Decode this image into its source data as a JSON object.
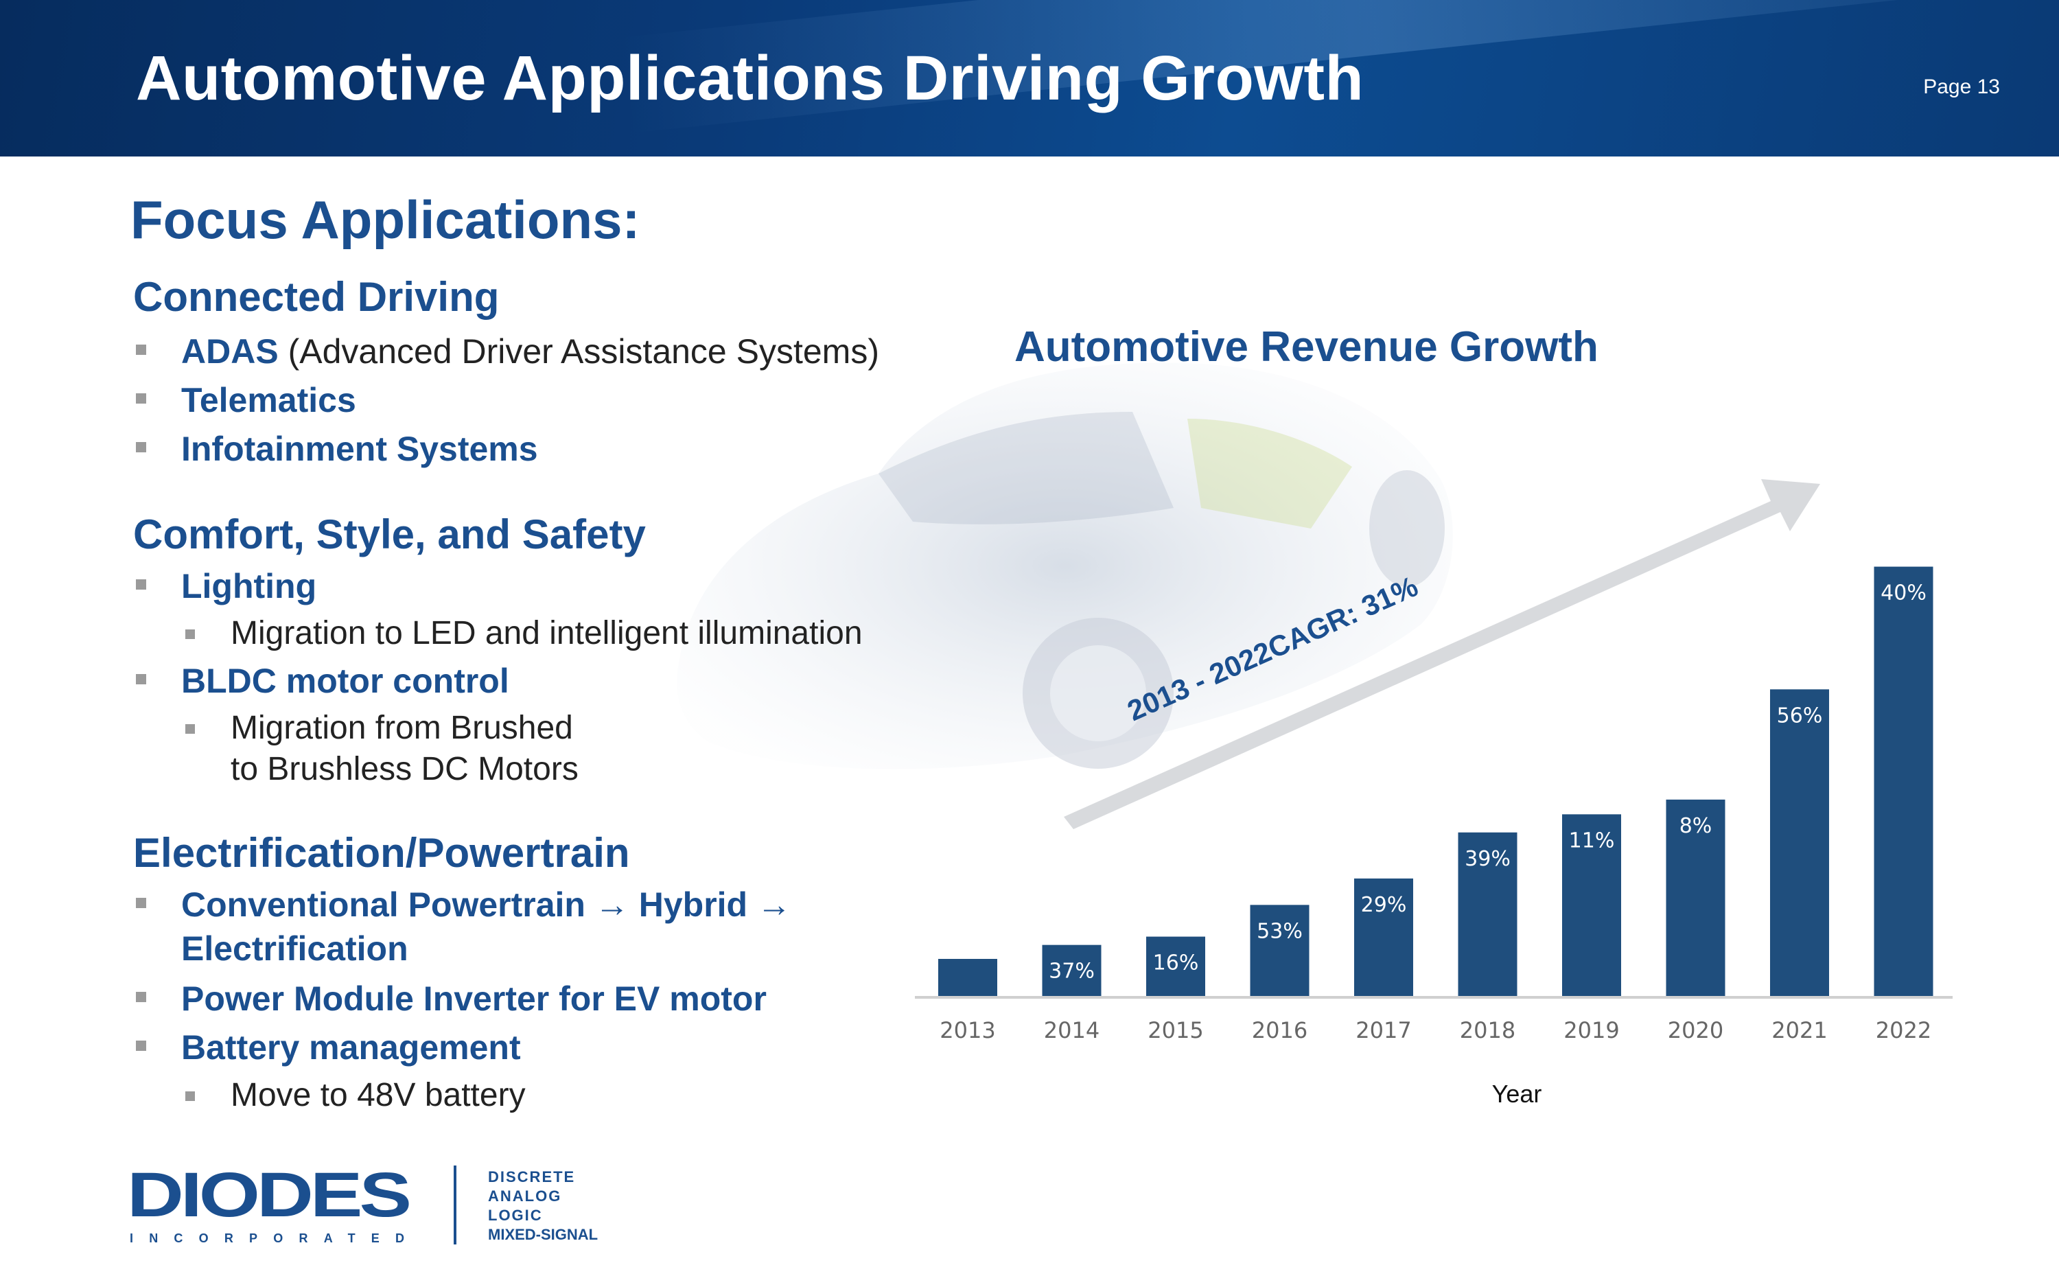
{
  "header": {
    "title": "Automotive Applications Driving Growth",
    "page": "Page 13"
  },
  "focus_title": "Focus Applications:",
  "sections": {
    "connected": {
      "heading": "Connected Driving",
      "items": [
        {
          "bold": "ADAS",
          "rest": " (Advanced Driver Assistance Systems)"
        },
        {
          "bold": "Telematics"
        },
        {
          "bold": "Infotainment Systems"
        }
      ]
    },
    "comfort": {
      "heading": "Comfort, Style, and Safety",
      "items": [
        {
          "bold": "Lighting",
          "sub": "Migration to LED and intelligent illumination"
        },
        {
          "bold": "BLDC motor control",
          "sub1": "Migration from Brushed",
          "sub2": "to Brushless DC Motors"
        }
      ]
    },
    "electrification": {
      "heading": "Electrification/Powertrain",
      "items": [
        {
          "line1": "Conventional Powertrain → Hybrid →",
          "line2": "Electrification"
        },
        {
          "bold": "Power Module Inverter for EV motor"
        },
        {
          "bold": "Battery management",
          "sub": "Move to 48V battery"
        }
      ]
    }
  },
  "logo": {
    "name": "DIODES",
    "tag": "INCORPORATED",
    "lines": [
      "DISCRETE",
      "ANALOG",
      "LOGIC",
      "MIXED-SIGNAL"
    ]
  },
  "colors": {
    "bar": "#1f4e7d",
    "title_blue": "#1b4f8f",
    "arrow": "#d4d6d9"
  },
  "chart_data": {
    "type": "bar",
    "title": "Automotive Revenue Growth",
    "xlabel": "Year",
    "ylabel": "",
    "categories": [
      "2013",
      "2014",
      "2015",
      "2016",
      "2017",
      "2018",
      "2019",
      "2020",
      "2021",
      "2022"
    ],
    "values": [
      1.0,
      1.37,
      1.59,
      2.43,
      3.13,
      4.35,
      4.83,
      5.22,
      8.14,
      11.39
    ],
    "labels": [
      "",
      "37%",
      "16%",
      "53%",
      "29%",
      "39%",
      "11%",
      "8%",
      "56%",
      "40%"
    ],
    "ylim": [
      0,
      12
    ],
    "annotation": "2013 - 2022CAGR: 31%"
  }
}
